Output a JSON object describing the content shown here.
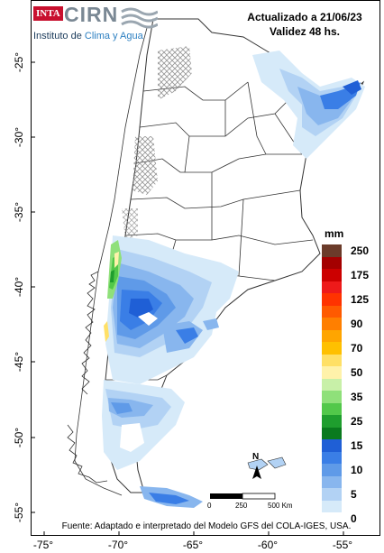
{
  "header": {
    "logo_badge": "INTA",
    "logo_name": "CIRN",
    "logo_subtitle_prefix": "Instituto de ",
    "logo_subtitle_accent": "Clima y Agua",
    "updated_line1": "Actualizado a 21/06/23",
    "updated_line2": "Validez 48 hs."
  },
  "legend": {
    "unit": "mm",
    "classes": [
      {
        "label": "250",
        "color": "#6b3b2a"
      },
      {
        "label": "",
        "color": "#a40000"
      },
      {
        "label": "175",
        "color": "#cc0000"
      },
      {
        "label": "",
        "color": "#ee1a1a"
      },
      {
        "label": "125",
        "color": "#ff3300"
      },
      {
        "label": "",
        "color": "#ff5a00"
      },
      {
        "label": "90",
        "color": "#ff7f00"
      },
      {
        "label": "",
        "color": "#ffa500"
      },
      {
        "label": "70",
        "color": "#ffc000"
      },
      {
        "label": "",
        "color": "#ffe066"
      },
      {
        "label": "50",
        "color": "#fff2aa"
      },
      {
        "label": "",
        "color": "#c8f0a8"
      },
      {
        "label": "35",
        "color": "#8fe07a"
      },
      {
        "label": "",
        "color": "#52c84a"
      },
      {
        "label": "25",
        "color": "#1f9e2e"
      },
      {
        "label": "",
        "color": "#0a7a1e"
      },
      {
        "label": "15",
        "color": "#1f5fd6"
      },
      {
        "label": "",
        "color": "#3a7ee6"
      },
      {
        "label": "10",
        "color": "#5f9ae8"
      },
      {
        "label": "",
        "color": "#88b6ee"
      },
      {
        "label": "5",
        "color": "#b2d2f4"
      },
      {
        "label": "",
        "color": "#d6eaf9"
      },
      {
        "label": "0",
        "color": "#ffffff"
      }
    ]
  },
  "axes": {
    "latitudes": [
      "-25°",
      "-30°",
      "-35°",
      "-40°",
      "-45°",
      "-50°",
      "-55°"
    ],
    "longitudes": [
      "-75°",
      "-70°",
      "-65°",
      "-60°",
      "-55°"
    ]
  },
  "scale": {
    "labels": [
      "0",
      "250",
      "500 Km"
    ]
  },
  "north_label": "N",
  "source_text": "Fuente: Adaptado e interpretado del Modelo GFS del COLA-IGES, USA."
}
